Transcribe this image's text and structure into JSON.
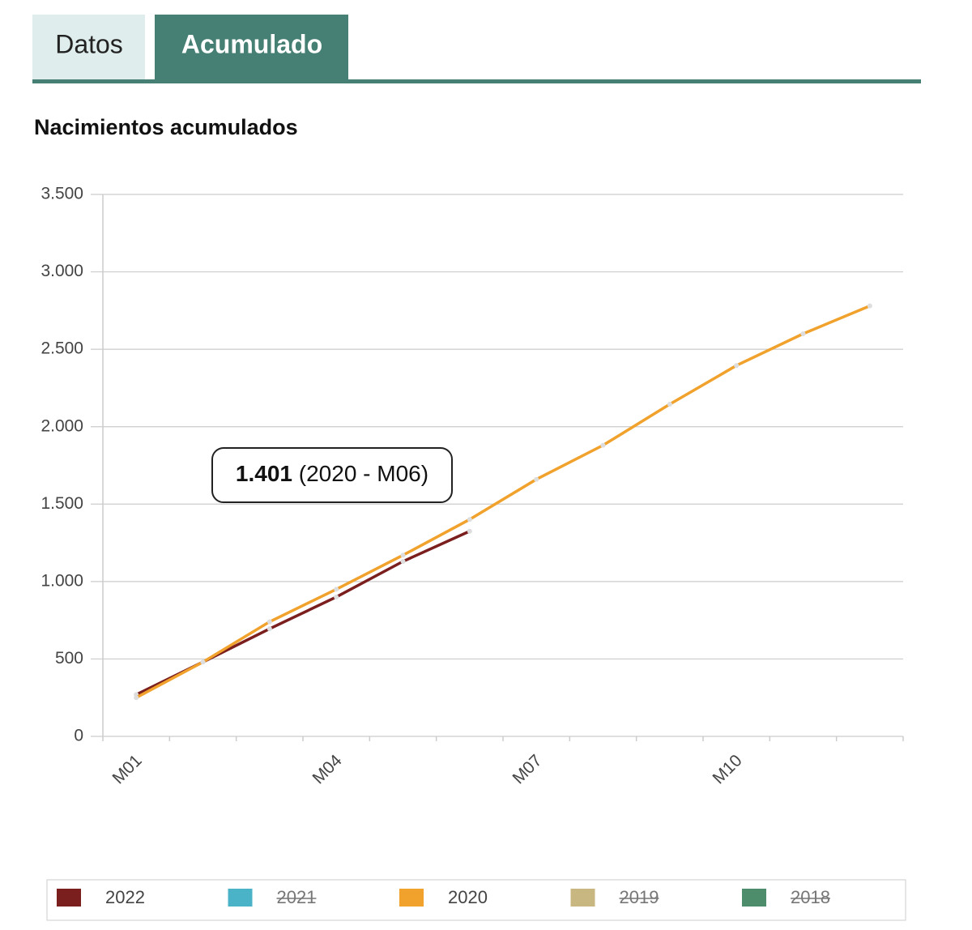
{
  "tabs": [
    "Datos",
    "Acumulado"
  ],
  "chart_data": {
    "type": "line",
    "title": "Nacimientos acumulados",
    "categories": [
      "M01",
      null,
      null,
      "M04",
      null,
      null,
      "M07",
      null,
      null,
      "M10",
      null,
      null
    ],
    "ylim": [
      0,
      3500
    ],
    "yticks": [
      0,
      500,
      {
        "value": 1000,
        "label": "1.000"
      },
      {
        "value": 1500,
        "label": "1.500"
      },
      {
        "value": 2000,
        "label": "2.000"
      },
      {
        "value": 2500,
        "label": "2.500"
      },
      {
        "value": 3000,
        "label": "3.000"
      },
      {
        "value": 3500,
        "label": "3.500"
      }
    ],
    "grid": true,
    "legend": "bottom",
    "series": [
      {
        "name": "2022",
        "color": "#7b1e1e",
        "hidden": false,
        "values": [
          270,
          480,
          695,
          900,
          1130,
          1325,
          null,
          null,
          null,
          null,
          null,
          null
        ]
      },
      {
        "name": "2021",
        "color": "#4bb3c8",
        "hidden": true,
        "values": [
          null,
          null,
          null,
          null,
          null,
          null,
          null,
          null,
          null,
          null,
          null,
          null
        ]
      },
      {
        "name": "2020",
        "color": "#f0a22d",
        "hidden": false,
        "values": [
          250,
          480,
          740,
          950,
          1170,
          1401,
          1660,
          1880,
          2145,
          2395,
          2600,
          2780
        ]
      },
      {
        "name": "2019",
        "color": "#c9b782",
        "hidden": true,
        "values": [
          null,
          null,
          null,
          null,
          null,
          null,
          null,
          null,
          null,
          null,
          null,
          null
        ]
      },
      {
        "name": "2018",
        "color": "#4e8d6c",
        "hidden": true,
        "values": [
          null,
          null,
          null,
          null,
          null,
          null,
          null,
          null,
          null,
          null,
          null,
          null
        ]
      }
    ],
    "tooltip": {
      "label": "1.401",
      "detail": "(2020 - M06)"
    }
  }
}
